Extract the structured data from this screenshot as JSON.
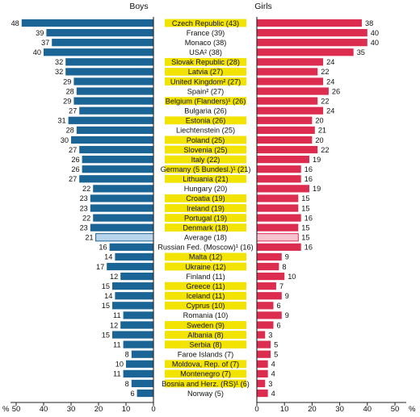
{
  "chart_data": {
    "type": "bar",
    "layout": "back-to-back horizontal bars",
    "panels": [
      {
        "name": "Boys",
        "ylim": [
          0,
          50
        ],
        "ticks": [
          "50",
          "40",
          "30",
          "20",
          "10",
          "0"
        ],
        "unit": "%"
      },
      {
        "name": "Girls",
        "ylim": [
          0,
          50
        ],
        "ticks": [
          "0",
          "10",
          "20",
          "30",
          "40",
          "50"
        ],
        "unit": "%"
      }
    ],
    "categories": [
      {
        "label": "Czech Republic (43)",
        "highlight": true
      },
      {
        "label": "France (39)",
        "highlight": false
      },
      {
        "label": "Monaco (38)",
        "highlight": false
      },
      {
        "label": "USA² (38)",
        "highlight": false
      },
      {
        "label": "Slovak Republic (28)",
        "highlight": true
      },
      {
        "label": "Latvia (27)",
        "highlight": true
      },
      {
        "label": "United Kingdom² (27)",
        "highlight": true
      },
      {
        "label": "Spain² (27)",
        "highlight": false
      },
      {
        "label": "Belgium (Flanders)¹ (26)",
        "highlight": true
      },
      {
        "label": "Bulgaria (26)",
        "highlight": false
      },
      {
        "label": "Estonia (26)",
        "highlight": true
      },
      {
        "label": "Liechtenstein (25)",
        "highlight": false
      },
      {
        "label": "Poland (25)",
        "highlight": true
      },
      {
        "label": "Slovenia (25)",
        "highlight": true
      },
      {
        "label": "Italy (22)",
        "highlight": true
      },
      {
        "label": "Germany (5 Bundesl.)¹ (21)",
        "highlight": true
      },
      {
        "label": "Lithuania (21)",
        "highlight": true
      },
      {
        "label": "Hungary (20)",
        "highlight": false
      },
      {
        "label": "Croatia (19)",
        "highlight": true
      },
      {
        "label": "Ireland (19)",
        "highlight": true
      },
      {
        "label": "Portugal (19)",
        "highlight": true
      },
      {
        "label": "Denmark (18)",
        "highlight": true
      },
      {
        "label": "Average (18)",
        "highlight": false,
        "average": true
      },
      {
        "label": "Russian Fed. (Moscow)¹ (16)",
        "highlight": false
      },
      {
        "label": "Malta (12)",
        "highlight": true
      },
      {
        "label": "Ukraine (12)",
        "highlight": true
      },
      {
        "label": "Finland (11)",
        "highlight": false
      },
      {
        "label": "Greece (11)",
        "highlight": true
      },
      {
        "label": "Iceland (11)",
        "highlight": true
      },
      {
        "label": "Cyprus (10)",
        "highlight": true
      },
      {
        "label": "Romania (10)",
        "highlight": false
      },
      {
        "label": "Sweden (9)",
        "highlight": true
      },
      {
        "label": "Albania (8)",
        "highlight": true
      },
      {
        "label": "Serbia (8)",
        "highlight": true
      },
      {
        "label": "Faroe Islands (7)",
        "highlight": false
      },
      {
        "label": "Moldova, Rep. of (7)",
        "highlight": true
      },
      {
        "label": "Montenegro (7)",
        "highlight": true
      },
      {
        "label": "Bosnia and Herz. (RS)¹ (6)",
        "highlight": true
      },
      {
        "label": "Norway (5)",
        "highlight": false
      }
    ],
    "series": [
      {
        "name": "Boys",
        "values": [
          48,
          39,
          37,
          40,
          32,
          32,
          29,
          28,
          29,
          27,
          31,
          28,
          30,
          27,
          26,
          26,
          27,
          22,
          23,
          23,
          22,
          23,
          21,
          16,
          14,
          17,
          12,
          15,
          14,
          15,
          11,
          12,
          15,
          11,
          8,
          10,
          11,
          8,
          6
        ]
      },
      {
        "name": "Girls",
        "values": [
          38,
          40,
          40,
          35,
          24,
          22,
          24,
          26,
          22,
          24,
          20,
          21,
          20,
          22,
          19,
          16,
          16,
          19,
          15,
          15,
          16,
          15,
          15,
          16,
          9,
          8,
          10,
          7,
          9,
          6,
          9,
          6,
          3,
          5,
          5,
          4,
          4,
          3,
          4
        ]
      }
    ],
    "colors": {
      "boys": "#1a6496",
      "girls": "#dc2d50",
      "average_boys_fill": "#b9d5ec",
      "average_girls_fill": "#f6c4cf",
      "highlight": "#f2e300"
    }
  }
}
